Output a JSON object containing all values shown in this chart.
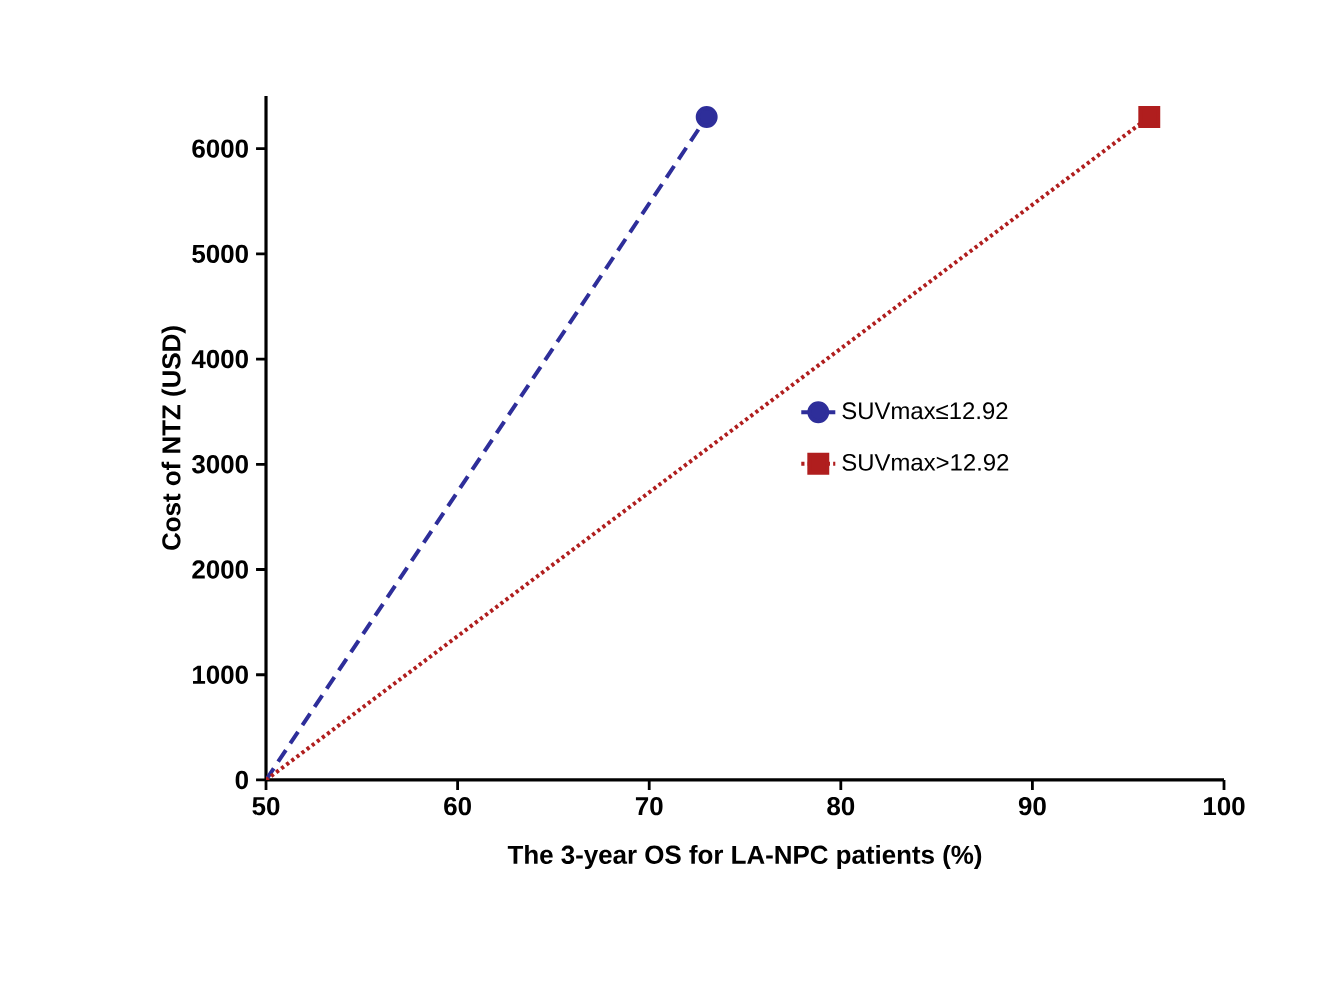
{
  "chart_data": {
    "type": "line",
    "xlabel": "The  3-year OS for LA-NPC patients (%)",
    "ylabel": "Cost of NTZ (USD)",
    "xlim": [
      50,
      100
    ],
    "xticks": [
      50,
      60,
      70,
      80,
      90,
      100
    ],
    "ylim": [
      0,
      6500
    ],
    "yticks": [
      0,
      1000,
      2000,
      3000,
      4000,
      5000,
      6000
    ],
    "legend": "right",
    "grid": false,
    "series": [
      {
        "name": "SUVmax≤12.92",
        "color": "#2e2e9a",
        "x": [
          50,
          73.0
        ],
        "values": [
          0,
          6300
        ],
        "marker": "circle",
        "line_style": "dashed"
      },
      {
        "name": "SUVmax>12.92",
        "color": "#b01e1e",
        "x": [
          50,
          96.1
        ],
        "values": [
          0,
          6300
        ],
        "marker": "square",
        "line_style": "dotted"
      }
    ]
  }
}
